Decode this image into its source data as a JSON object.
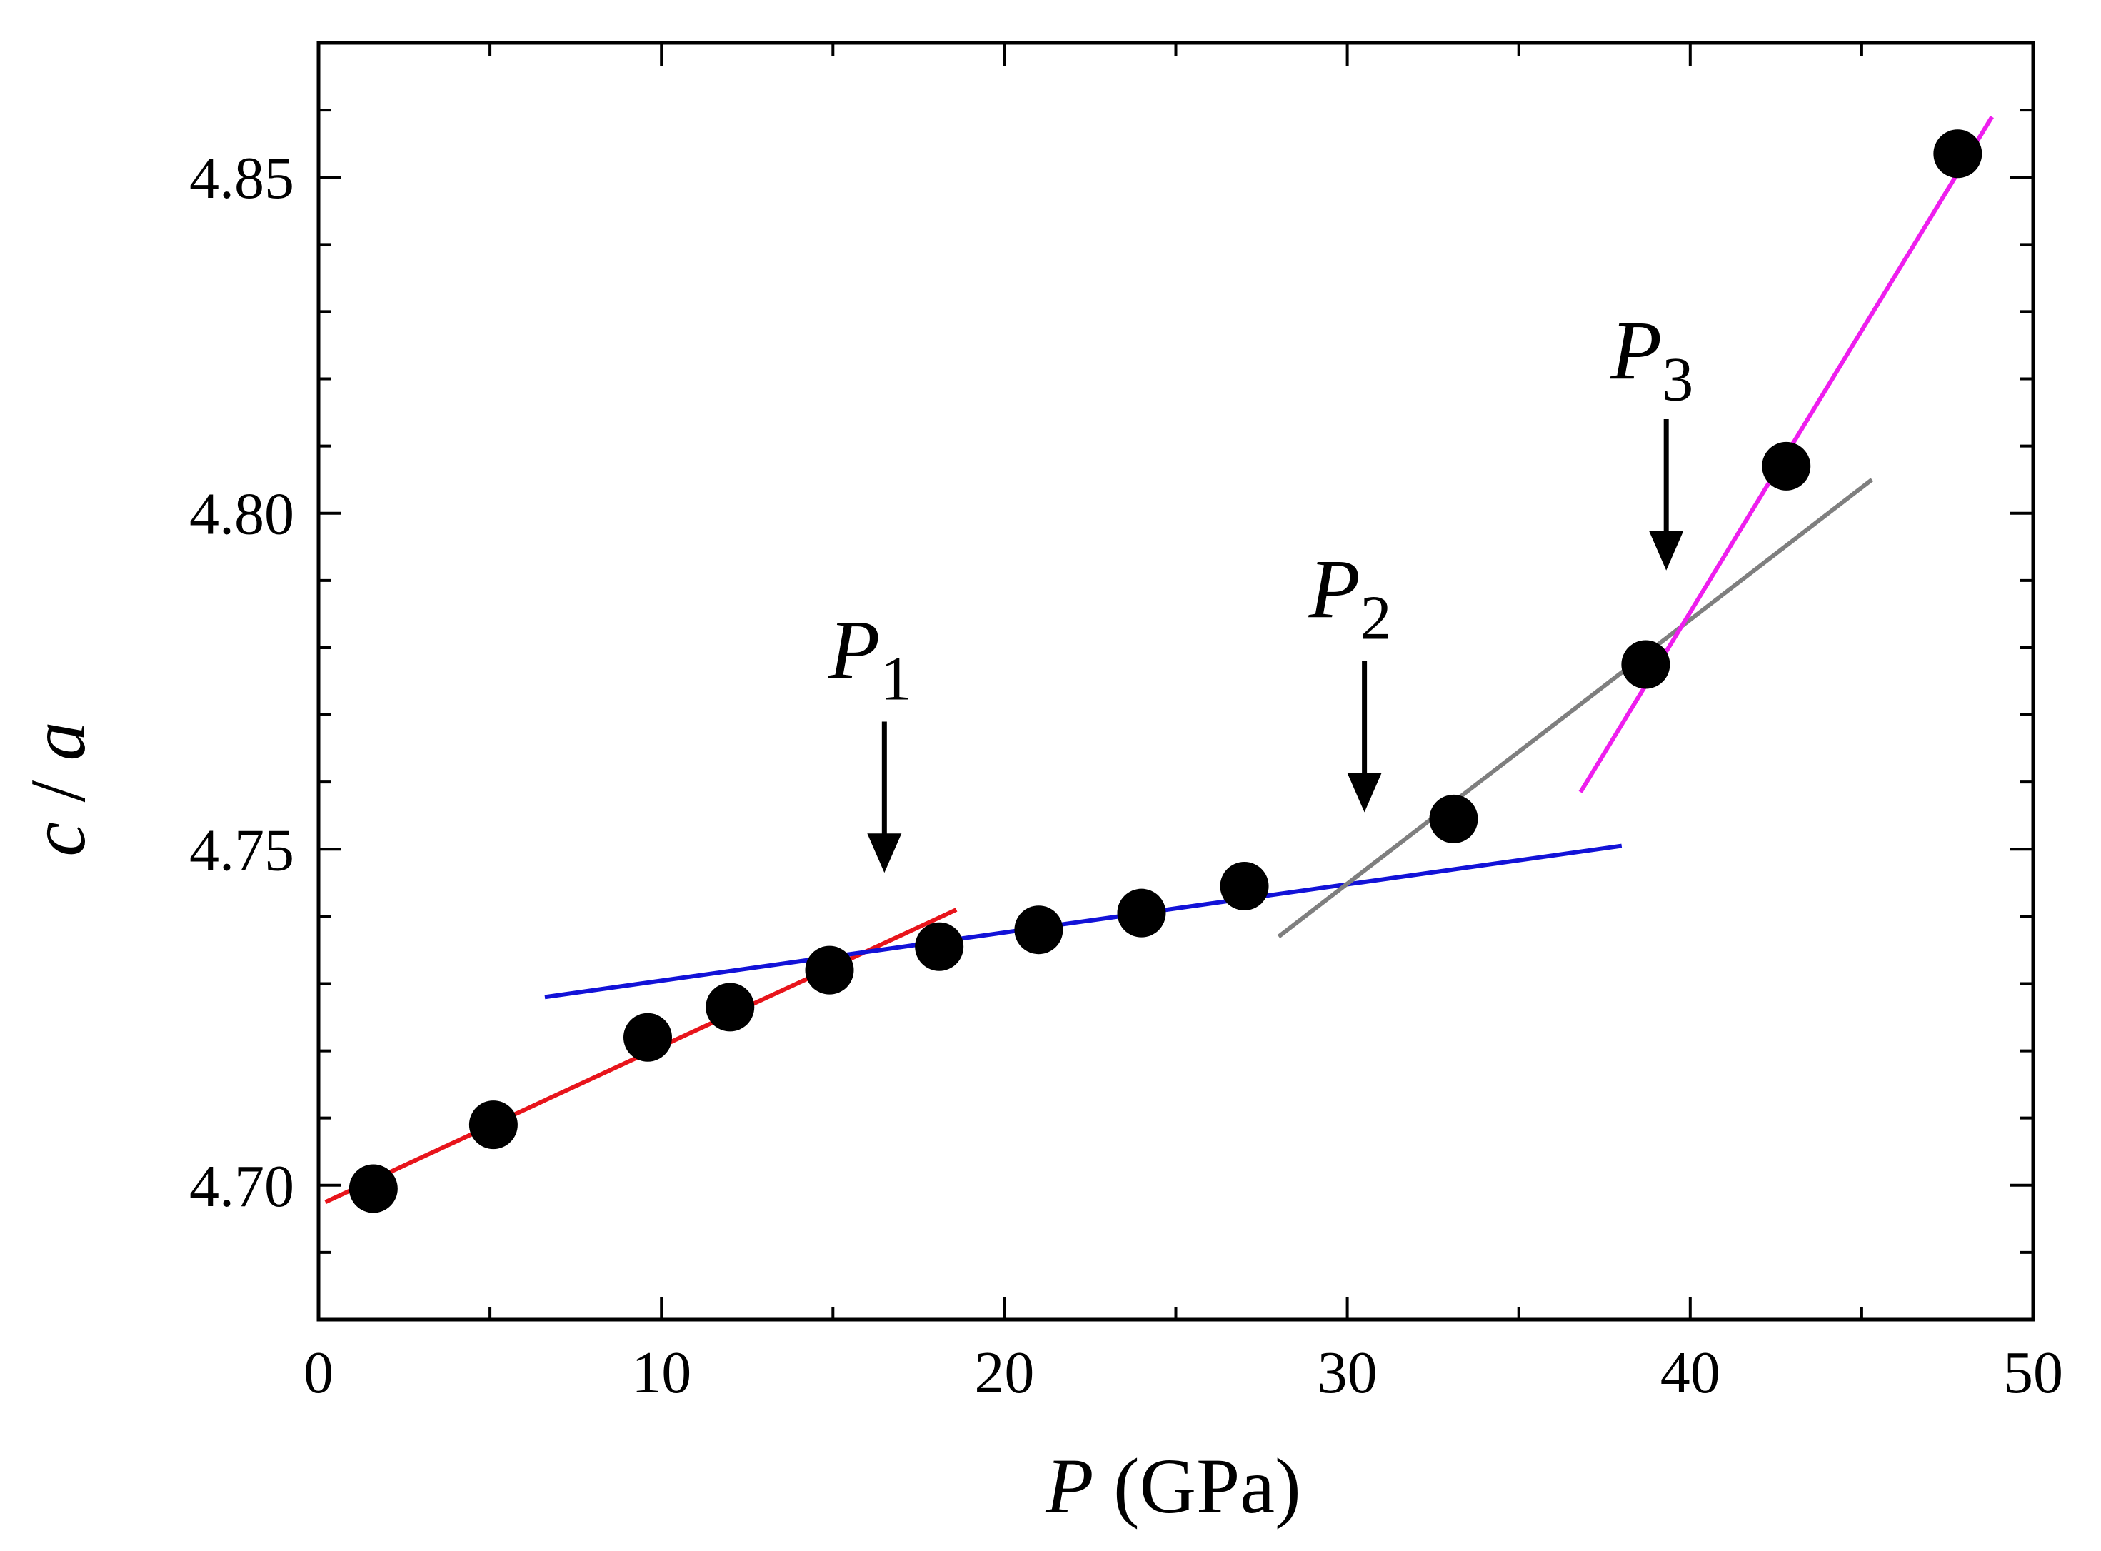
{
  "chart_data": {
    "type": "scatter",
    "title": "",
    "xlabel": {
      "italic": "P",
      "rest": " (GPa)"
    },
    "ylabel": {
      "italic_a": "c",
      "sep": " / ",
      "italic_b": "a"
    },
    "xlim": [
      0,
      50
    ],
    "ylim": [
      4.68,
      4.87
    ],
    "xticks": [
      0,
      10,
      20,
      30,
      40,
      50
    ],
    "xtick_labels": [
      "0",
      "10",
      "20",
      "30",
      "40",
      "50"
    ],
    "xminor": [
      5,
      15,
      25,
      35,
      45
    ],
    "yticks": [
      4.7,
      4.75,
      4.8,
      4.85
    ],
    "ytick_labels": [
      "4.70",
      "4.75",
      "4.80",
      "4.85"
    ],
    "yminor": [
      4.69,
      4.71,
      4.72,
      4.73,
      4.74,
      4.76,
      4.77,
      4.78,
      4.79,
      4.81,
      4.82,
      4.83,
      4.84,
      4.86
    ],
    "grid": false,
    "points": {
      "x": [
        1.6,
        5.1,
        9.6,
        12.0,
        14.9,
        18.1,
        21.0,
        24.0,
        27.0,
        33.1,
        38.7,
        42.8,
        47.8
      ],
      "y": [
        4.6995,
        4.709,
        4.722,
        4.7265,
        4.732,
        4.7355,
        4.738,
        4.7405,
        4.7445,
        4.7545,
        4.7775,
        4.807,
        4.8535
      ],
      "color": "#000000"
    },
    "fit_lines": [
      {
        "name": "fit-1",
        "color": "#e8141b",
        "x": [
          0.2,
          18.6
        ],
        "y": [
          4.6975,
          4.741
        ]
      },
      {
        "name": "fit-2",
        "color": "#1212d8",
        "x": [
          6.6,
          38.0
        ],
        "y": [
          4.728,
          4.7505
        ]
      },
      {
        "name": "fit-3",
        "color": "#7f7f7f",
        "x": [
          28.0,
          45.3
        ],
        "y": [
          4.737,
          4.805
        ]
      },
      {
        "name": "fit-4",
        "color": "#ee1eee",
        "x": [
          36.8,
          48.8
        ],
        "y": [
          4.7585,
          4.859
        ]
      }
    ],
    "annotations": [
      {
        "letter": "P",
        "sub": "1",
        "x": 16.5,
        "y_text": 4.7755,
        "y_arrow_top": 4.769,
        "y_arrow_tip": 4.7465
      },
      {
        "letter": "P",
        "sub": "2",
        "x": 30.5,
        "y_text": 4.7845,
        "y_arrow_top": 4.778,
        "y_arrow_tip": 4.7555
      },
      {
        "letter": "P",
        "sub": "3",
        "x": 39.3,
        "y_text": 4.82,
        "y_arrow_top": 4.814,
        "y_arrow_tip": 4.7915
      }
    ]
  }
}
